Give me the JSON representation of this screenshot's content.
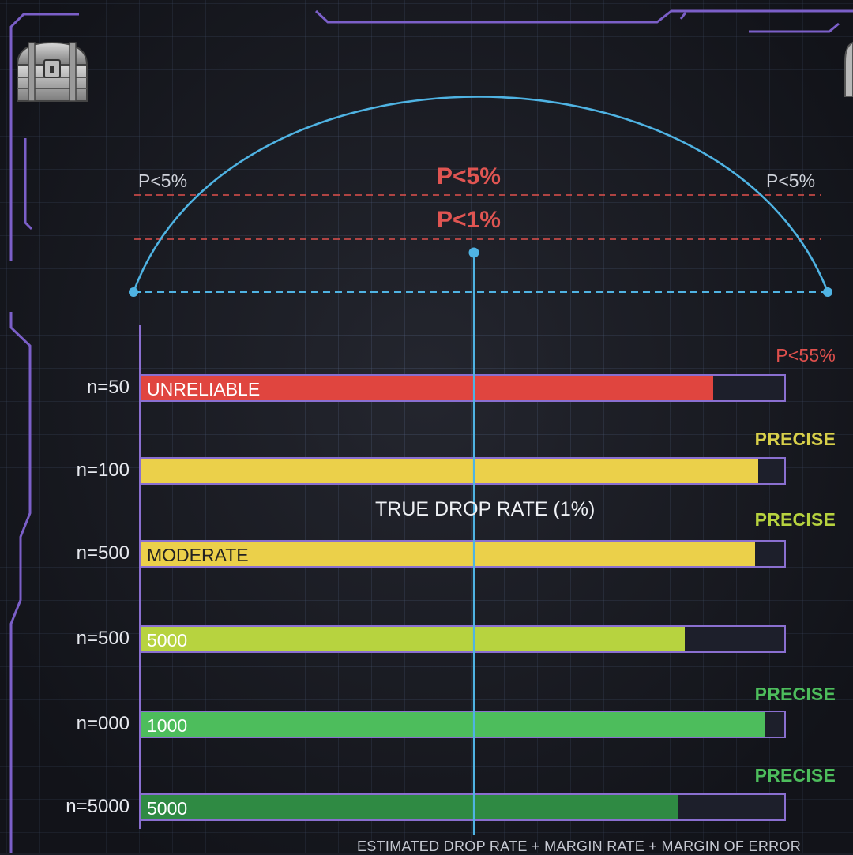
{
  "chart_data": {
    "type": "bar",
    "orientation": "horizontal",
    "categories": [
      "n=50",
      "n=100",
      "n=500",
      "n=500",
      "n=000",
      "n=5000"
    ],
    "series": [
      {
        "values": [
          0.89,
          0.96,
          0.955,
          0.845,
          0.97,
          0.835
        ]
      }
    ],
    "bar_labels": [
      "UNRELIABLE",
      "",
      "MODERATE",
      "5000",
      "1000",
      "5000"
    ],
    "status_labels": [
      "P<55%",
      "PRECISE",
      "PRECISE",
      "",
      "PRECISE",
      "PRECISE"
    ],
    "bar_colors": [
      "#e0453f",
      "#ebd04a",
      "#ebd04a",
      "#b7d33f",
      "#4dbd5c",
      "#2f8a43"
    ],
    "status_colors": [
      "#e0504d",
      "#d8d04a",
      "#b7d33f",
      "#b7d33f",
      "#4dbd5c",
      "#4dbd5c"
    ],
    "bar_text_colors": [
      "#ffffff",
      "#222222",
      "#222222",
      "#ffffff",
      "#ffffff",
      "#ffffff"
    ],
    "xlim": [
      0,
      1
    ],
    "reference_line_label": "TRUE DROP RATE (1%)",
    "x_axis_caption": "ESTIMATED DROP RATE + MARGIN RATE + MARGIN OF ERROR",
    "confidence_arc": {
      "thresholds": [
        {
          "center_label": "P<5%",
          "side_labels": [
            "P<5%",
            "P<5%"
          ]
        },
        {
          "center_label": "P<1%",
          "side_labels": []
        }
      ]
    },
    "grid": true
  },
  "icons": {
    "top_left": "treasure-chest-icon",
    "top_right": "treasure-chest-icon"
  },
  "colors": {
    "background": "#1b1d26",
    "frame": "#7b5fc8",
    "arc": "#4fb3e3",
    "threshold": "#e0504d"
  }
}
